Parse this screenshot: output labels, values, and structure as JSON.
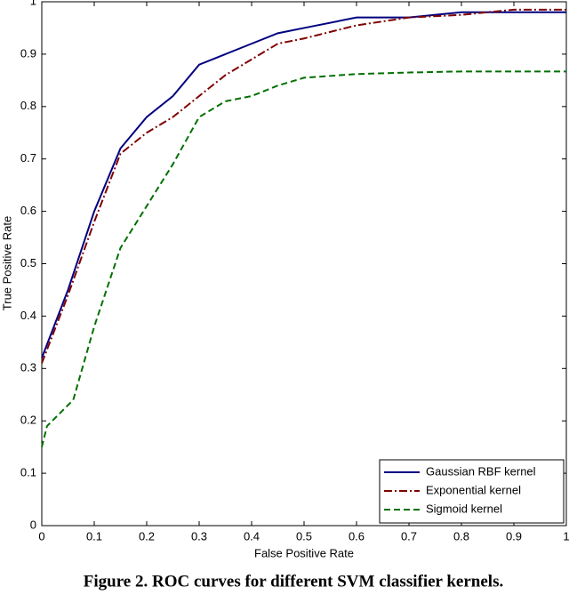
{
  "chart_data": {
    "type": "line",
    "title": "Figure 2. ROC curves for different SVM classifier kernels.",
    "x_label": "False Positive Rate",
    "y_label": "True Positive Rate",
    "xlim": [
      0,
      1
    ],
    "ylim": [
      0,
      1
    ],
    "xticks": [
      0,
      0.1,
      0.2,
      0.3,
      0.4,
      0.5,
      0.6,
      0.7,
      0.8,
      0.9,
      1
    ],
    "yticks": [
      0,
      0.1,
      0.2,
      0.3,
      0.4,
      0.5,
      0.6,
      0.7,
      0.8,
      0.9,
      1
    ],
    "legend": "lower right",
    "series": [
      {
        "name": "Gaussian RBF kernel",
        "color": "#000080",
        "style": "solid",
        "x": [
          0,
          0.05,
          0.1,
          0.15,
          0.2,
          0.25,
          0.3,
          0.35,
          0.4,
          0.45,
          0.5,
          0.6,
          0.7,
          0.8,
          0.9,
          1
        ],
        "values": [
          0.32,
          0.45,
          0.6,
          0.72,
          0.78,
          0.82,
          0.88,
          0.9,
          0.92,
          0.94,
          0.95,
          0.97,
          0.97,
          0.98,
          0.98,
          0.98
        ]
      },
      {
        "name": "Exponential kernel",
        "color": "#800000",
        "style": "dashdot",
        "x": [
          0,
          0.05,
          0.1,
          0.15,
          0.2,
          0.25,
          0.3,
          0.35,
          0.4,
          0.45,
          0.5,
          0.6,
          0.7,
          0.8,
          0.9,
          1
        ],
        "values": [
          0.31,
          0.44,
          0.58,
          0.71,
          0.75,
          0.78,
          0.82,
          0.86,
          0.89,
          0.92,
          0.93,
          0.955,
          0.97,
          0.975,
          0.985,
          0.985
        ]
      },
      {
        "name": "Sigmoid kernel",
        "color": "#007000",
        "style": "dashed",
        "x": [
          0,
          0.01,
          0.06,
          0.1,
          0.15,
          0.2,
          0.25,
          0.3,
          0.35,
          0.4,
          0.45,
          0.5,
          0.6,
          0.7,
          0.8,
          0.9,
          1
        ],
        "values": [
          0.15,
          0.19,
          0.24,
          0.38,
          0.53,
          0.61,
          0.69,
          0.78,
          0.81,
          0.82,
          0.84,
          0.855,
          0.862,
          0.865,
          0.867,
          0.867,
          0.867
        ]
      }
    ]
  }
}
